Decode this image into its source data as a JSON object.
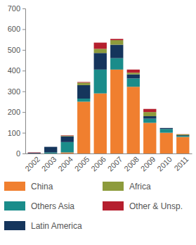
{
  "chart_data": {
    "type": "bar",
    "stacked": true,
    "grid": false,
    "legend": "bottom",
    "categories": [
      "2002",
      "2003",
      "2004",
      "2005",
      "2006",
      "2007",
      "2008",
      "2009",
      "2010",
      "2011"
    ],
    "series": [
      {
        "name": "China",
        "color": "#f07f2f",
        "values": [
          0,
          0,
          5,
          250,
          290,
          405,
          322,
          148,
          100,
          80
        ]
      },
      {
        "name": "Others Asia",
        "color": "#1a8c8a",
        "values": [
          0,
          5,
          50,
          15,
          115,
          55,
          40,
          20,
          18,
          5
        ]
      },
      {
        "name": "Latin America",
        "color": "#15355c",
        "values": [
          3,
          27,
          28,
          65,
          80,
          65,
          20,
          12,
          5,
          3
        ]
      },
      {
        "name": "Africa",
        "color": "#8d9b3c",
        "values": [
          0,
          0,
          3,
          12,
          20,
          22,
          8,
          20,
          0,
          4
        ]
      },
      {
        "name": "Other & Unsp.",
        "color": "#b51f2e",
        "values": [
          2,
          0,
          2,
          3,
          30,
          6,
          15,
          15,
          0,
          1
        ]
      }
    ],
    "ylim": [
      0,
      700
    ],
    "yticks": [
      0,
      100,
      200,
      300,
      400,
      500,
      600,
      700
    ]
  }
}
